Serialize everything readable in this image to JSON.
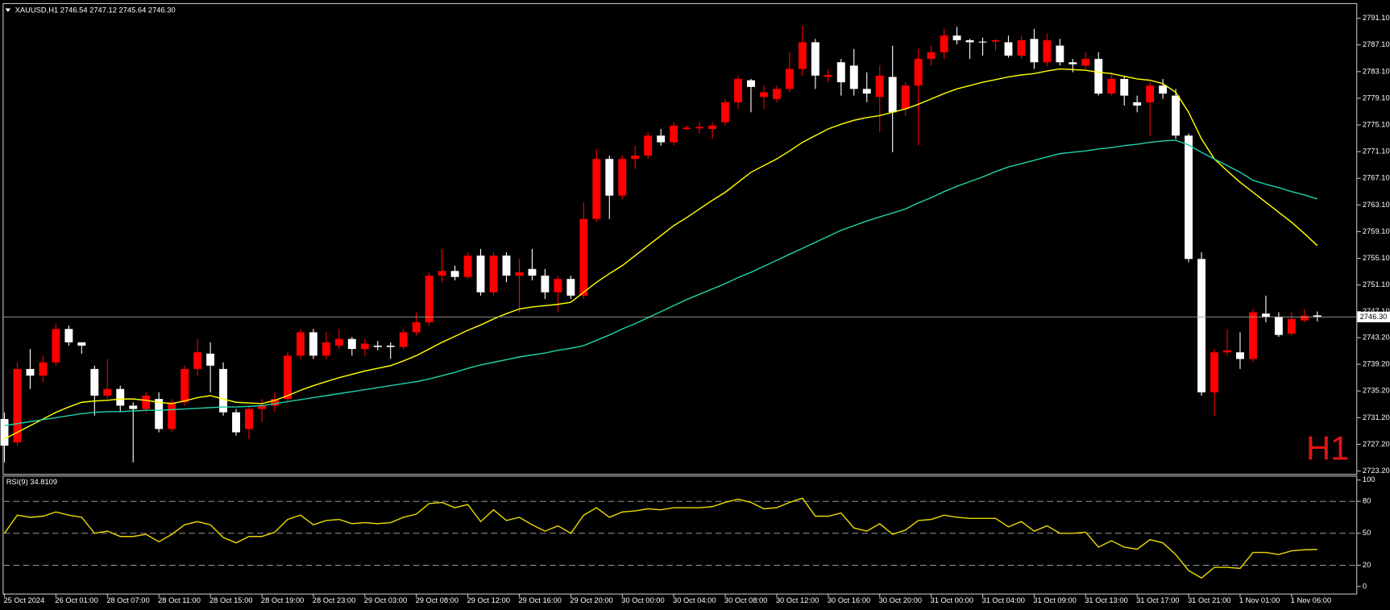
{
  "chart_data": [
    {
      "type": "candlestick",
      "title": "XAUUSD,H1  2746.54 2747.12 2745.64 2746.30",
      "watermark": "H1",
      "up_color": "#ff0000",
      "down_color": "#ffffff",
      "current_price": {
        "value": 2746.3,
        "label": "2746.30"
      },
      "categories": [
        "25 Oct 2024",
        null,
        null,
        null,
        "26 Oct 01:00",
        null,
        null,
        null,
        "28 Oct 07:00",
        null,
        null,
        null,
        "28 Oct 11:00",
        null,
        null,
        null,
        "28 Oct 15:00",
        null,
        null,
        null,
        "28 Oct 19:00",
        null,
        null,
        null,
        "28 Oct 23:00",
        null,
        null,
        null,
        "29 Oct 03:00",
        null,
        null,
        null,
        "29 Oct 08:00",
        null,
        null,
        null,
        "29 Oct 12:00",
        null,
        null,
        null,
        "29 Oct 16:00",
        null,
        null,
        null,
        "29 Oct 20:00",
        null,
        null,
        null,
        "30 Oct 00:00",
        null,
        null,
        null,
        "30 Oct 04:00",
        null,
        null,
        null,
        "30 Oct 08:00",
        null,
        null,
        null,
        "30 Oct 12:00",
        null,
        null,
        null,
        "30 Oct 16:00",
        null,
        null,
        null,
        "30 Oct 20:00",
        null,
        null,
        null,
        "31 Oct 00:00",
        null,
        null,
        null,
        "31 Oct 04:00",
        null,
        null,
        null,
        "31 Oct 09:00",
        null,
        null,
        null,
        "31 Oct 13:00",
        null,
        null,
        null,
        "31 Oct 17:00",
        null,
        null,
        null,
        "31 Oct 21:00",
        null,
        null,
        null,
        "1 Nov 01:00",
        null,
        null,
        null,
        "1 Nov 06:00",
        null,
        null
      ],
      "open": [
        2731,
        2727.5,
        2738.5,
        2737.5,
        2739.5,
        2744.5,
        2742.5,
        2738.5,
        2734.5,
        2735.5,
        2733,
        2732.5,
        2734,
        2729.5,
        2733.5,
        2738.5,
        2740.8,
        2738.5,
        2732,
        2729.5,
        2732.5,
        2733,
        2734,
        2740.5,
        2744,
        2740.5,
        2742,
        2743,
        2741.5,
        2742,
        2742,
        2741.8,
        2744,
        2745.5,
        2752.5,
        2753.2,
        2752.3,
        2755.5,
        2750,
        2755.5,
        2752.5,
        2753.5,
        2752.5,
        2750,
        2752,
        2749.5,
        2761,
        2770,
        2764.5,
        2770,
        2770.5,
        2773.5,
        2772.5,
        2774.5,
        2774.6,
        2774.5,
        2775.5,
        2778.5,
        2781.8,
        2779.3,
        2779,
        2780.5,
        2783.5,
        2787.5,
        2782.3,
        2784.5,
        2784,
        2780.5,
        2779.3,
        2782.3,
        2777.5,
        2781,
        2785,
        2786,
        2788.5,
        2787.8,
        2787.6,
        2787.6,
        2787.5,
        2785.5,
        2788,
        2784.5,
        2787,
        2784.5,
        2784,
        2785,
        2779.8,
        2782,
        2778.5,
        2778.5,
        2781,
        2779.5,
        2773.5,
        2755,
        2735,
        2741,
        2741,
        2740,
        2746.8,
        2746.3,
        2743.8,
        2745.8,
        2746.54
      ],
      "high": [
        2732,
        2739.5,
        2741.5,
        2740.5,
        2745.3,
        2745,
        2742.5,
        2739,
        2740,
        2736,
        2733.5,
        2735,
        2735,
        2734,
        2739,
        2743,
        2742.5,
        2739.5,
        2732.5,
        2733,
        2734,
        2735,
        2741,
        2744.5,
        2744.5,
        2744,
        2744.5,
        2743.3,
        2743,
        2742.7,
        2742.5,
        2744.5,
        2747,
        2753,
        2756.5,
        2754,
        2756,
        2756.5,
        2756,
        2756,
        2755,
        2756.5,
        2753.5,
        2752.5,
        2752.5,
        2763.5,
        2771.5,
        2770.5,
        2770.5,
        2772,
        2774,
        2774.5,
        2775.5,
        2775,
        2775.5,
        2775.5,
        2779,
        2782.5,
        2782,
        2781,
        2781,
        2786,
        2790,
        2788,
        2783.5,
        2785,
        2786.5,
        2783,
        2784,
        2787,
        2781.5,
        2786.5,
        2787,
        2789.5,
        2789.8,
        2788,
        2788.2,
        2788,
        2788.5,
        2788.5,
        2789.5,
        2788.8,
        2788,
        2785,
        2786,
        2786,
        2783,
        2782.5,
        2779.5,
        2781.5,
        2782,
        2780.5,
        2773.8,
        2756,
        2741.5,
        2744.5,
        2744,
        2747.5,
        2749.5,
        2747,
        2747,
        2747.5,
        2747.12
      ],
      "low": [
        2724.5,
        2727,
        2735.5,
        2736.5,
        2739,
        2742,
        2740.8,
        2731.5,
        2734,
        2732,
        2724.5,
        2732,
        2729,
        2729,
        2733,
        2737.5,
        2735,
        2731.5,
        2728.5,
        2728,
        2730.5,
        2732,
        2733.5,
        2740,
        2740,
        2740,
        2741.5,
        2740.5,
        2740.5,
        2741.3,
        2740,
        2741.5,
        2743.5,
        2745,
        2751.5,
        2751.8,
        2752,
        2749.5,
        2749.5,
        2751.5,
        2747,
        2751.8,
        2749,
        2747,
        2749,
        2749,
        2760.5,
        2761,
        2764,
        2768.5,
        2770,
        2772,
        2772,
        2774.3,
        2773.8,
        2773,
        2775,
        2777.5,
        2777,
        2777.5,
        2778.5,
        2780,
        2782.5,
        2780.5,
        2781.5,
        2779.5,
        2779.5,
        2778.5,
        2774,
        2771,
        2776.5,
        2772,
        2784,
        2785,
        2787.2,
        2785,
        2785.5,
        2786.2,
        2785.2,
        2785,
        2783.5,
        2784,
        2784,
        2783,
        2783.5,
        2779.5,
        2779.5,
        2778,
        2777,
        2773.5,
        2779,
        2773,
        2754.5,
        2734.5,
        2731.5,
        2740.5,
        2738.5,
        2739.5,
        2745.5,
        2743.3,
        2743.5,
        2745.5,
        2745.64
      ],
      "close": [
        2727,
        2738.5,
        2737.5,
        2739.5,
        2744.5,
        2742.5,
        2742,
        2734.5,
        2735.5,
        2733,
        2732.5,
        2734.5,
        2729.5,
        2733.5,
        2738.5,
        2741,
        2739,
        2732,
        2729,
        2732.5,
        2733,
        2734,
        2740.5,
        2744,
        2740.5,
        2742.5,
        2743,
        2741.5,
        2742.3,
        2741.8,
        2741.8,
        2744,
        2745.5,
        2752.5,
        2753.2,
        2752.3,
        2755.5,
        2750,
        2755.5,
        2752.5,
        2753,
        2752.5,
        2750,
        2752,
        2749.5,
        2761,
        2770,
        2764.5,
        2770,
        2770.5,
        2773.5,
        2772.5,
        2775,
        2774.7,
        2774.8,
        2775,
        2778.5,
        2782,
        2780.8,
        2780,
        2780.5,
        2783.5,
        2787.5,
        2782.5,
        2782.6,
        2781.5,
        2780.5,
        2779.8,
        2782.5,
        2777,
        2781,
        2785,
        2786,
        2788.5,
        2787.8,
        2787.5,
        2787.5,
        2787.8,
        2785.5,
        2787.8,
        2784.5,
        2787.8,
        2784.5,
        2784.2,
        2785,
        2779.8,
        2782,
        2779.5,
        2778,
        2781,
        2779.8,
        2773.5,
        2755,
        2735,
        2741,
        2741.3,
        2740,
        2747,
        2746.3,
        2743.6,
        2746,
        2746.5,
        2746.3
      ],
      "series": [
        {
          "color": "#ffff00",
          "values": [
            2728,
            2729,
            2730,
            2731,
            2732,
            2732.8,
            2733.5,
            2733.7,
            2733.8,
            2734,
            2734,
            2733.8,
            2733.5,
            2733.3,
            2733.7,
            2734.2,
            2734.5,
            2734,
            2733.5,
            2733.4,
            2733.3,
            2733.8,
            2734.5,
            2735.3,
            2736,
            2736.6,
            2737.2,
            2737.7,
            2738.2,
            2738.6,
            2739,
            2739.7,
            2740.5,
            2741.5,
            2742.5,
            2743.4,
            2744.3,
            2745.1,
            2746,
            2746.8,
            2747.5,
            2747.8,
            2748,
            2748.2,
            2748.5,
            2750,
            2751.5,
            2752.8,
            2754,
            2755.5,
            2757,
            2758.5,
            2760,
            2761.2,
            2762.5,
            2763.8,
            2765,
            2766.5,
            2768,
            2769,
            2770,
            2771.2,
            2772.5,
            2773.5,
            2774.5,
            2775.2,
            2775.8,
            2776.2,
            2776.5,
            2777,
            2777.5,
            2778.2,
            2779,
            2779.8,
            2780.5,
            2781,
            2781.5,
            2781.9,
            2782.3,
            2782.6,
            2782.8,
            2783.2,
            2783.5,
            2783.4,
            2783.3,
            2783,
            2782.8,
            2782.4,
            2782,
            2781.8,
            2781.3,
            2780,
            2777,
            2773,
            2770,
            2768.2,
            2766.5,
            2765,
            2763.5,
            2762,
            2760.5,
            2758.8,
            2757
          ]
        },
        {
          "color": "#20d0a8",
          "values": [
            2730,
            2730.3,
            2730.6,
            2730.9,
            2731.2,
            2731.5,
            2731.8,
            2732,
            2732.1,
            2732.1,
            2732.2,
            2732.3,
            2732.3,
            2732.4,
            2732.5,
            2732.6,
            2732.7,
            2732.8,
            2732.8,
            2732.9,
            2733,
            2733.3,
            2733.6,
            2733.9,
            2734.2,
            2734.5,
            2734.8,
            2735.1,
            2735.4,
            2735.7,
            2736,
            2736.3,
            2736.6,
            2737,
            2737.5,
            2738,
            2738.6,
            2739.1,
            2739.5,
            2739.9,
            2740.3,
            2740.6,
            2740.9,
            2741.3,
            2741.6,
            2742,
            2742.8,
            2743.6,
            2744.5,
            2745.3,
            2746.2,
            2747.1,
            2748,
            2748.9,
            2749.7,
            2750.5,
            2751.3,
            2752.2,
            2753,
            2753.9,
            2754.8,
            2755.7,
            2756.6,
            2757.5,
            2758.4,
            2759.3,
            2760,
            2760.7,
            2761.3,
            2761.9,
            2762.5,
            2763.4,
            2764.2,
            2765.1,
            2765.9,
            2766.6,
            2767.3,
            2768.1,
            2768.8,
            2769.3,
            2769.8,
            2770.3,
            2770.8,
            2771,
            2771.2,
            2771.5,
            2771.7,
            2772,
            2772.2,
            2772.5,
            2772.7,
            2772.8,
            2772.1,
            2771,
            2770,
            2769,
            2768,
            2766.8,
            2766.2,
            2765.7,
            2765.1,
            2764.6,
            2764
          ]
        }
      ],
      "ylim": [
        2722.9,
        2793.1
      ],
      "yticks": [
        {
          "value": 2791.1,
          "label": "2791.10"
        },
        {
          "value": 2787.1,
          "label": "2787.10"
        },
        {
          "value": 2783.1,
          "label": "2783.10"
        },
        {
          "value": 2779.1,
          "label": "2779.10"
        },
        {
          "value": 2775.1,
          "label": "2775.10"
        },
        {
          "value": 2771.1,
          "label": "2771.10"
        },
        {
          "value": 2767.1,
          "label": "2767.10"
        },
        {
          "value": 2763.1,
          "label": "2763.10"
        },
        {
          "value": 2759.1,
          "label": "2759.10"
        },
        {
          "value": 2755.1,
          "label": "2755.10"
        },
        {
          "value": 2751.1,
          "label": "2751.10"
        },
        {
          "value": 2747.1,
          "label": "2747.10"
        },
        {
          "value": 2743.2,
          "label": "2743.20"
        },
        {
          "value": 2739.2,
          "label": "2739.20"
        },
        {
          "value": 2735.2,
          "label": "2735.20"
        },
        {
          "value": 2731.2,
          "label": "2731.20"
        },
        {
          "value": 2727.2,
          "label": "2727.20"
        },
        {
          "value": 2723.2,
          "label": "2723.20"
        }
      ]
    },
    {
      "type": "line",
      "title": "RSI(9) 34.8109",
      "series": [
        {
          "color": "#e8d800",
          "values": [
            50,
            67,
            65,
            66,
            70,
            67,
            65,
            50,
            52,
            47,
            47,
            49,
            42,
            49,
            58,
            61,
            58,
            46,
            41,
            47,
            47,
            51,
            63,
            67,
            58,
            62,
            63,
            59,
            60,
            59,
            60,
            65,
            68,
            78,
            79,
            74,
            77,
            61,
            72,
            62,
            65,
            58,
            52,
            57,
            50,
            67,
            74,
            65,
            70,
            71,
            73,
            72,
            74,
            74,
            74,
            75,
            79,
            82,
            79,
            73,
            74,
            79,
            83,
            66,
            66,
            69,
            55,
            52,
            59,
            49,
            53,
            62,
            63,
            67,
            65,
            64,
            64,
            64,
            56,
            61,
            52,
            57,
            50,
            50,
            51,
            37,
            43,
            37,
            35,
            44,
            41,
            30,
            15,
            8,
            18,
            18,
            17,
            32,
            32,
            30,
            33.5,
            34.5,
            34.8109
          ]
        }
      ],
      "ylim": [
        -5.8,
        103.3
      ],
      "yticks": [
        100,
        80,
        50,
        20,
        0
      ],
      "levels": [
        80,
        50,
        20
      ]
    }
  ]
}
